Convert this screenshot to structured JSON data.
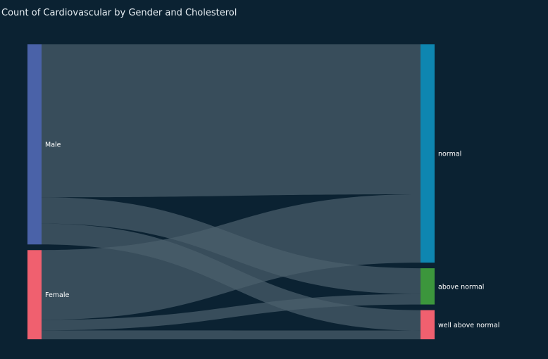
{
  "chart_data": {
    "type": "sankey",
    "title": "Count of Cardiovascular by Gender and Cholesterol",
    "sources": [
      {
        "name": "Male",
        "color": "#4a62a8"
      },
      {
        "name": "Female",
        "color": "#f0606f"
      }
    ],
    "targets": [
      {
        "name": "normal",
        "color": "#0e86b0"
      },
      {
        "name": "above normal",
        "color": "#3c963c"
      },
      {
        "name": "well above normal",
        "color": "#f0606f"
      }
    ],
    "links": [
      {
        "source": "Male",
        "target": "normal",
        "value": 36000
      },
      {
        "source": "Male",
        "target": "above normal",
        "value": 6200
      },
      {
        "source": "Male",
        "target": "well above normal",
        "value": 4900
      },
      {
        "source": "Female",
        "target": "normal",
        "value": 16400
      },
      {
        "source": "Female",
        "target": "above normal",
        "value": 2500
      },
      {
        "source": "Female",
        "target": "well above normal",
        "value": 2100
      }
    ],
    "link_color": "#4b5f6c"
  }
}
